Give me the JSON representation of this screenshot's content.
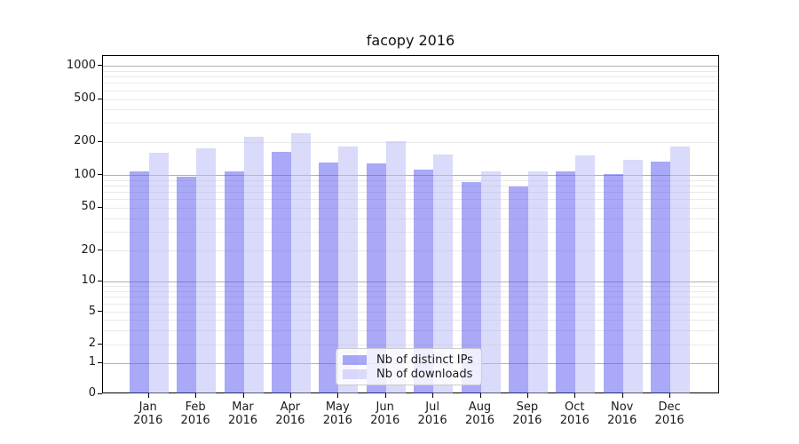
{
  "title": "facopy 2016",
  "chart_data": {
    "type": "bar",
    "title": "facopy 2016",
    "categories": [
      "Jan 2016",
      "Feb 2016",
      "Mar 2016",
      "Apr 2016",
      "May 2016",
      "Jun 2016",
      "Jul 2016",
      "Aug 2016",
      "Sep 2016",
      "Oct 2016",
      "Nov 2016",
      "Dec 2016"
    ],
    "series": [
      {
        "name": "Nb of distinct IPs",
        "color": "rgba(84, 84, 240, 0.5)",
        "values": [
          109,
          96,
          108,
          163,
          131,
          127,
          112,
          87,
          79,
          109,
          102,
          133
        ]
      },
      {
        "name": "Nb of downloads",
        "color": "rgba(181, 181, 245, 0.5)",
        "values": [
          160,
          175,
          224,
          240,
          183,
          204,
          155,
          108,
          109,
          150,
          137,
          182
        ]
      }
    ],
    "xlabel": "",
    "ylabel": "",
    "yscale": "symlog",
    "yticks": [
      0,
      1,
      2,
      5,
      10,
      20,
      50,
      100,
      200,
      500,
      1000
    ],
    "ylim": [
      0,
      1250
    ],
    "grid": true,
    "legend_position": "lower center"
  },
  "colors": {
    "grid_minor": "#e9e9e9",
    "grid_major": "#b2b2b2",
    "spine": "#000000",
    "text": "#1a1a1a",
    "background": "#ffffff"
  }
}
